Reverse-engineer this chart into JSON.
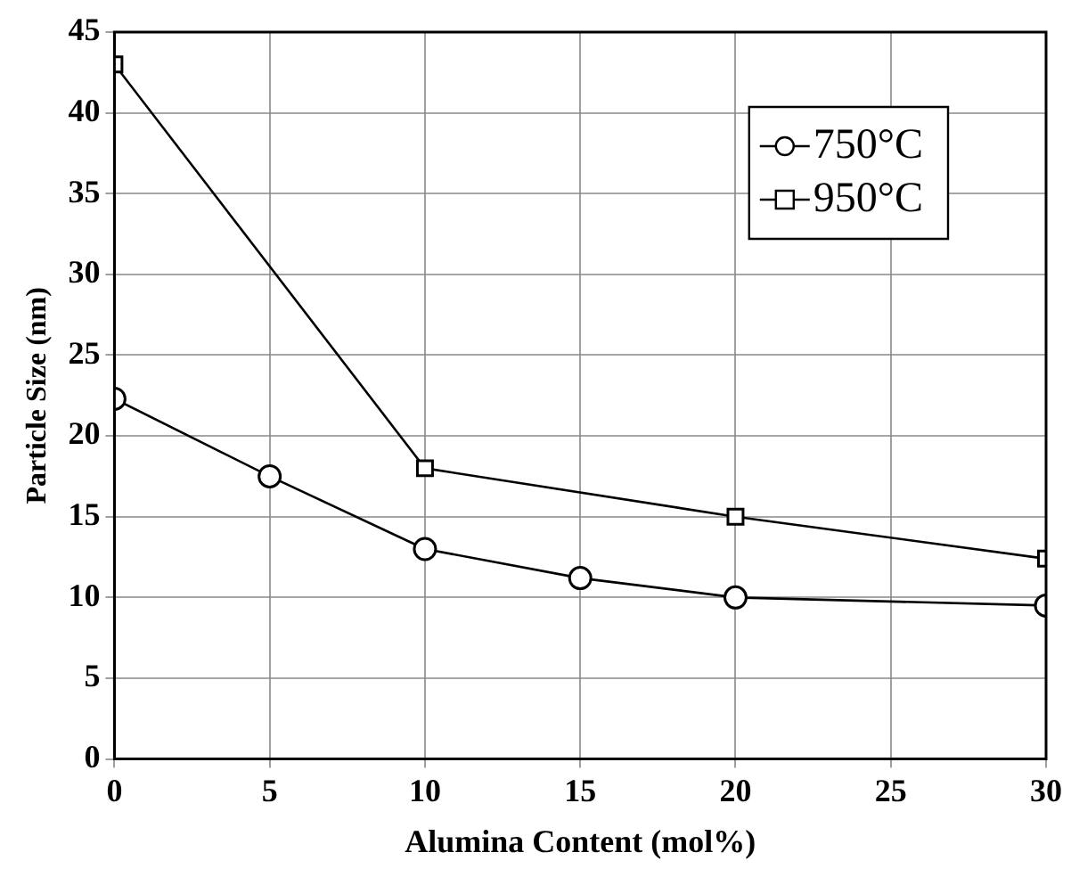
{
  "chart_data": {
    "type": "line",
    "xlabel": "Alumina Content (mol%)",
    "ylabel": "Particle Size (nm)",
    "xlim": [
      0,
      30
    ],
    "xticks": [
      0,
      5,
      10,
      15,
      20,
      25,
      30
    ],
    "ylim": [
      0,
      45
    ],
    "yticks": [
      0,
      5,
      10,
      15,
      20,
      25,
      30,
      35,
      40,
      45
    ],
    "grid": true,
    "legend": "top right",
    "series": [
      {
        "name": "750°C",
        "color": "#000000",
        "marker": "circle",
        "x": [
          0,
          5,
          10,
          15,
          20,
          30
        ],
        "values": [
          22.3,
          17.5,
          13,
          11.2,
          10,
          9.5
        ]
      },
      {
        "name": "950°C",
        "color": "#000000",
        "marker": "square",
        "x": [
          0,
          10,
          20,
          30
        ],
        "values": [
          43,
          18,
          15,
          12.4
        ]
      }
    ]
  }
}
